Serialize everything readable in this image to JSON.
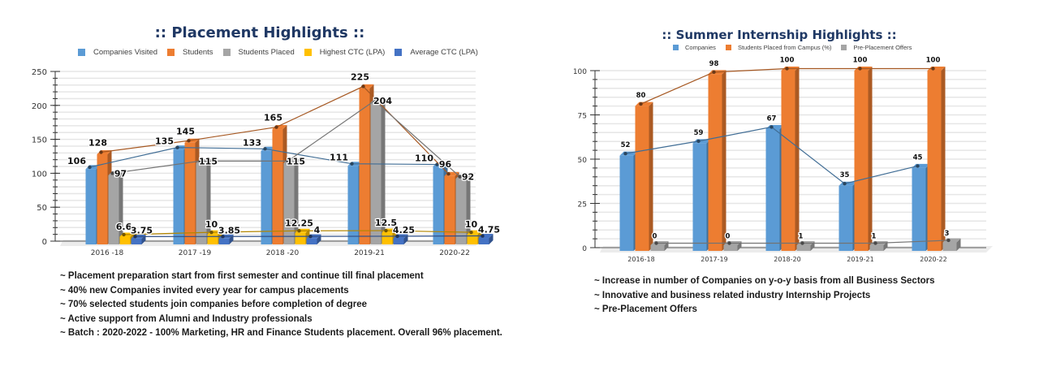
{
  "chart_data": [
    {
      "id": "placement",
      "type": "bar",
      "title": ":: Placement Highlights ::",
      "xlabel": "",
      "ylabel": "",
      "ylim": [
        0,
        250
      ],
      "yticks": [
        0,
        50,
        100,
        150,
        200,
        250
      ],
      "grid": true,
      "legend_position": "top",
      "categories": [
        "2016 -18",
        "2017 -19",
        "2018 -20",
        "2019-21",
        "2020-22"
      ],
      "series": [
        {
          "name": "Companies Visited",
          "color": "#5b9bd5",
          "values": [
            106,
            135,
            133,
            111,
            110
          ]
        },
        {
          "name": "Students",
          "color": "#ed7d31",
          "values": [
            128,
            145,
            165,
            225,
            96
          ]
        },
        {
          "name": "Students Placed",
          "color": "#a5a5a5",
          "values": [
            97,
            115,
            115,
            204,
            92
          ]
        },
        {
          "name": "Highest CTC (LPA)",
          "color": "#ffc000",
          "values": [
            6.6,
            10,
            12.25,
            12.5,
            10
          ]
        },
        {
          "name": "Average CTC (LPA)",
          "color": "#4472c4",
          "values": [
            3.75,
            3.85,
            4,
            4.25,
            4.75
          ]
        }
      ],
      "bullets": [
        "~ Placement preparation start from first semester and continue till final placement",
        "~ 40% new Companies invited every year for campus placements",
        "~ 70% selected students join companies before completion of degree",
        "~ Active support from Alumni and Industry professionals",
        "~ Batch : 2020-2022 - 100% Marketing, HR and Finance Students placement. Overall 96% placement."
      ]
    },
    {
      "id": "internship",
      "type": "bar",
      "title": ":: Summer Internship Highlights ::",
      "xlabel": "",
      "ylabel": "",
      "ylim": [
        0,
        100
      ],
      "yticks": [
        0,
        25,
        50,
        75,
        100
      ],
      "grid": true,
      "legend_position": "top",
      "categories": [
        "2016-18",
        "2017-19",
        "2018-20",
        "2019-21",
        "2020-22"
      ],
      "series": [
        {
          "name": "Companies",
          "color": "#5b9bd5",
          "values": [
            52,
            59,
            67,
            35,
            45
          ]
        },
        {
          "name": "Students Placed from Campus (%)",
          "color": "#ed7d31",
          "values": [
            80,
            98,
            100,
            100,
            100
          ]
        },
        {
          "name": "Pre-Placement Offers",
          "color": "#a5a5a5",
          "values": [
            0,
            0,
            1,
            1,
            3
          ]
        }
      ],
      "bullets": [
        "~ Increase in number of Companies on y-o-y basis from all Business Sectors",
        "~ Innovative and business related industry Internship Projects",
        "~ Pre-Placement Offers"
      ]
    }
  ]
}
